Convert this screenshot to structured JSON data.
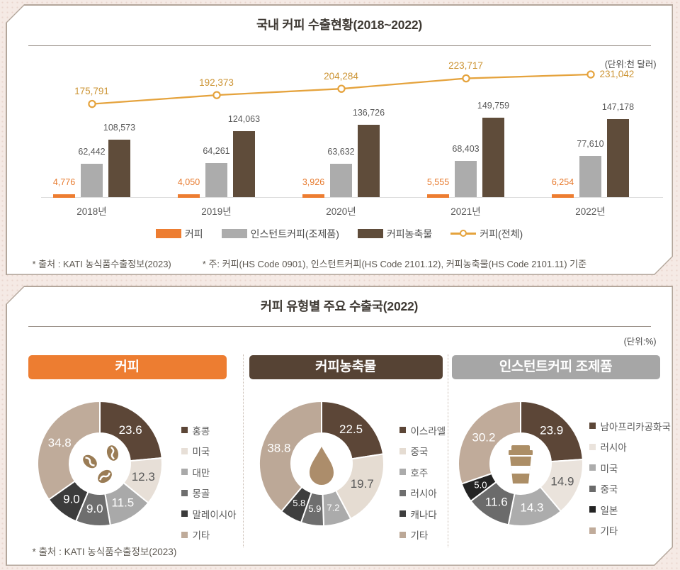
{
  "panel1": {
    "title": "국내 커피 수출현황(2018~2022)",
    "unit": "(단위:천 달러)",
    "source": "* 출처 : KATI 농식품수출정보(2023)",
    "note": "* 주: 커피(HS Code 0901), 인스턴트커피(HS Code 2101.12), 커피농축물(HS Code 2101.11) 기준"
  },
  "panel2": {
    "title": "커피 유형별 주요 수출국(2022)",
    "unit": "(단위:%)",
    "source": "* 출처 : KATI 농식품수출정보(2023)"
  },
  "chart_data": [
    {
      "type": "bar",
      "title": "국내 커피 수출현황(2018~2022)",
      "unit": "천 달러",
      "categories": [
        "2018년",
        "2019년",
        "2020년",
        "2021년",
        "2022년"
      ],
      "series": [
        {
          "name": "커피",
          "color": "#ED7D31",
          "label_color": "#E7792C",
          "values": [
            4776,
            4050,
            3926,
            5555,
            6254
          ]
        },
        {
          "name": "인스턴트커피(조제품)",
          "color": "#ACACAC",
          "label_color": "#595959",
          "values": [
            62442,
            64261,
            63632,
            68403,
            77610
          ]
        },
        {
          "name": "커피농축물",
          "color": "#5F4C3A",
          "label_color": "#595959",
          "values": [
            108573,
            124063,
            136726,
            149759,
            147178
          ]
        }
      ],
      "line": {
        "name": "커피(전체)",
        "color": "#E5A33D",
        "label_color": "#CC9434",
        "values": [
          175791,
          192373,
          204284,
          223717,
          231042
        ]
      },
      "ylim": [
        0,
        250000
      ],
      "grid": false,
      "legend_position": "bottom"
    },
    {
      "type": "pie",
      "title": "커피",
      "header_color": "#ED7D31",
      "icon": "coffee-beans-icon",
      "labels": [
        "홍콩",
        "미국",
        "대만",
        "몽골",
        "말레이시아",
        "기타"
      ],
      "values": [
        23.6,
        12.3,
        11.5,
        9.0,
        9.0,
        34.8
      ],
      "colors": [
        "#5C4637",
        "#E7DFD7",
        "#A9A9A9",
        "#6E6E6E",
        "#3B3B3B",
        "#BFAB9A"
      ],
      "label_colors": [
        "#FFFFFF",
        "#595959",
        "#FFFFFF",
        "#FFFFFF",
        "#FFFFFF",
        "#FFFFFF"
      ]
    },
    {
      "type": "pie",
      "title": "커피농축물",
      "header_color": "#564334",
      "icon": "coffee-drop-icon",
      "labels": [
        "이스라엘",
        "중국",
        "호주",
        "러시아",
        "캐나다",
        "기타"
      ],
      "values": [
        22.5,
        19.7,
        7.2,
        5.9,
        5.8,
        38.8
      ],
      "colors": [
        "#5C4637",
        "#E5DCD2",
        "#ABABAB",
        "#6E6E6E",
        "#3E3E3E",
        "#BCA897"
      ],
      "label_colors": [
        "#FFFFFF",
        "#595959",
        "#FFFFFF",
        "#FFFFFF",
        "#FFFFFF",
        "#FFFFFF"
      ]
    },
    {
      "type": "pie",
      "title": "인스턴트커피 조제품",
      "header_color": "#A6A6A6",
      "icon": "coffee-cup-icon",
      "labels": [
        "남아프리카공화국",
        "러시아",
        "미국",
        "중국",
        "일본",
        "기타"
      ],
      "values": [
        23.9,
        14.9,
        14.3,
        11.6,
        5.0,
        30.2
      ],
      "colors": [
        "#5C4637",
        "#EAE3DC",
        "#ACACAC",
        "#6B6B6B",
        "#232323",
        "#C0AB9A"
      ],
      "label_colors": [
        "#FFFFFF",
        "#595959",
        "#FFFFFF",
        "#FFFFFF",
        "#FFFFFF",
        "#FFFFFF"
      ]
    }
  ]
}
